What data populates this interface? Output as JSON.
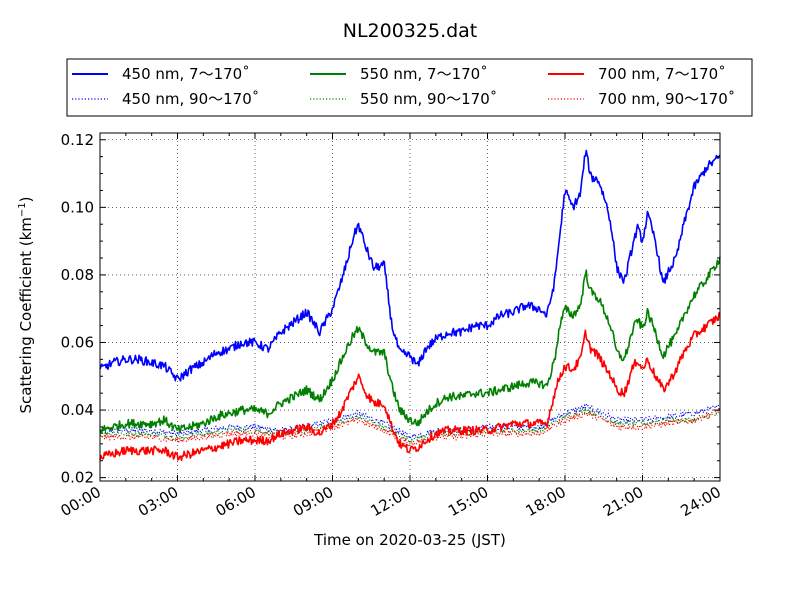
{
  "chart_data": {
    "type": "line",
    "title": "NL200325.dat",
    "xlabel": "Time on 2020-03-25 (JST)",
    "ylabel_main": "Scattering Coefficient (km",
    "ylabel_sup": "−1",
    "ylabel_close": ")",
    "xlim": [
      0,
      24
    ],
    "ylim": [
      0.019,
      0.122
    ],
    "xticks": [
      0,
      3,
      6,
      9,
      12,
      15,
      18,
      21,
      24
    ],
    "xtick_labels": [
      "00:00",
      "03:00",
      "06:00",
      "09:00",
      "12:00",
      "15:00",
      "18:00",
      "21:00",
      "24:00"
    ],
    "yticks": [
      0.02,
      0.04,
      0.06,
      0.08,
      0.1,
      0.12
    ],
    "ytick_labels": [
      "0.02",
      "0.04",
      "0.06",
      "0.08",
      "0.10",
      "0.12"
    ],
    "grid": true,
    "legend_position": "top",
    "series": [
      {
        "name": "450 nm, 7～170˚",
        "color": "#0000ff",
        "style": "solid",
        "x": [
          0,
          0.5,
          1,
          1.5,
          2,
          2.5,
          3,
          3.5,
          4,
          4.5,
          5,
          5.5,
          6,
          6.5,
          7,
          7.5,
          8,
          8.5,
          9,
          9.3,
          9.6,
          9.8,
          10,
          10.3,
          10.6,
          11,
          11.3,
          11.6,
          12,
          12.3,
          12.6,
          13,
          13.5,
          14,
          14.5,
          15,
          15.5,
          16,
          16.5,
          17,
          17.3,
          17.6,
          17.8,
          18,
          18.3,
          18.6,
          18.8,
          19,
          19.3,
          19.6,
          19.8,
          20,
          20.3,
          20.6,
          20.8,
          21,
          21.2,
          21.5,
          21.8,
          22,
          22.3,
          22.6,
          23,
          23.5,
          24
        ],
        "y": [
          0.052,
          0.054,
          0.055,
          0.055,
          0.054,
          0.053,
          0.049,
          0.052,
          0.054,
          0.057,
          0.058,
          0.06,
          0.06,
          0.058,
          0.063,
          0.066,
          0.069,
          0.063,
          0.07,
          0.077,
          0.085,
          0.091,
          0.095,
          0.088,
          0.082,
          0.083,
          0.065,
          0.057,
          0.056,
          0.053,
          0.058,
          0.061,
          0.063,
          0.063,
          0.065,
          0.065,
          0.068,
          0.069,
          0.071,
          0.07,
          0.068,
          0.078,
          0.092,
          0.105,
          0.1,
          0.104,
          0.117,
          0.109,
          0.108,
          0.101,
          0.094,
          0.082,
          0.078,
          0.088,
          0.094,
          0.09,
          0.098,
          0.09,
          0.077,
          0.081,
          0.085,
          0.095,
          0.106,
          0.112,
          0.115
        ]
      },
      {
        "name": "450 nm, 90～170˚",
        "color": "#0000ff",
        "style": "dotted",
        "x": [
          0,
          1,
          2,
          3,
          4,
          5,
          6,
          7,
          8,
          9,
          10,
          11,
          12,
          13,
          14,
          15,
          16,
          17,
          18,
          18.8,
          19.5,
          20,
          21,
          22,
          23,
          24
        ],
        "y": [
          0.034,
          0.034,
          0.034,
          0.033,
          0.034,
          0.035,
          0.035,
          0.034,
          0.035,
          0.037,
          0.039,
          0.036,
          0.032,
          0.034,
          0.034,
          0.035,
          0.035,
          0.035,
          0.039,
          0.041,
          0.039,
          0.037,
          0.037,
          0.038,
          0.039,
          0.041
        ]
      },
      {
        "name": "550 nm, 7～170˚",
        "color": "#008000",
        "style": "solid",
        "x": [
          0,
          0.5,
          1,
          1.5,
          2,
          2.5,
          3,
          3.5,
          4,
          4.5,
          5,
          5.5,
          6,
          6.5,
          7,
          7.5,
          8,
          8.5,
          9,
          9.3,
          9.6,
          9.8,
          10,
          10.3,
          10.6,
          11,
          11.3,
          11.6,
          12,
          12.3,
          12.6,
          13,
          13.5,
          14,
          14.5,
          15,
          15.5,
          16,
          16.5,
          17,
          17.3,
          17.6,
          17.8,
          18,
          18.3,
          18.6,
          18.8,
          19,
          19.3,
          19.6,
          19.8,
          20,
          20.3,
          20.6,
          20.8,
          21,
          21.2,
          21.5,
          21.8,
          22,
          22.3,
          22.6,
          23,
          23.5,
          24
        ],
        "y": [
          0.034,
          0.035,
          0.036,
          0.036,
          0.036,
          0.037,
          0.034,
          0.035,
          0.036,
          0.038,
          0.039,
          0.04,
          0.04,
          0.039,
          0.042,
          0.044,
          0.046,
          0.043,
          0.049,
          0.054,
          0.059,
          0.062,
          0.064,
          0.06,
          0.057,
          0.057,
          0.047,
          0.04,
          0.037,
          0.036,
          0.039,
          0.042,
          0.044,
          0.044,
          0.045,
          0.045,
          0.046,
          0.047,
          0.048,
          0.048,
          0.047,
          0.055,
          0.065,
          0.07,
          0.068,
          0.071,
          0.081,
          0.075,
          0.073,
          0.068,
          0.064,
          0.057,
          0.055,
          0.063,
          0.067,
          0.064,
          0.069,
          0.063,
          0.056,
          0.059,
          0.062,
          0.068,
          0.074,
          0.079,
          0.085
        ]
      },
      {
        "name": "550 nm, 90～170˚",
        "color": "#008000",
        "style": "dotted",
        "x": [
          0,
          1,
          2,
          3,
          4,
          5,
          6,
          7,
          8,
          9,
          10,
          11,
          12,
          13,
          14,
          15,
          16,
          17,
          18,
          18.8,
          19.5,
          20,
          21,
          22,
          23,
          24
        ],
        "y": [
          0.033,
          0.033,
          0.033,
          0.032,
          0.033,
          0.034,
          0.034,
          0.033,
          0.034,
          0.036,
          0.038,
          0.035,
          0.031,
          0.033,
          0.033,
          0.034,
          0.034,
          0.034,
          0.038,
          0.04,
          0.038,
          0.036,
          0.036,
          0.037,
          0.037,
          0.039
        ]
      },
      {
        "name": "700 nm, 7～170˚",
        "color": "#ff0000",
        "style": "solid",
        "x": [
          0,
          0.5,
          1,
          1.5,
          2,
          2.5,
          3,
          3.5,
          4,
          4.5,
          5,
          5.5,
          6,
          6.5,
          7,
          7.5,
          8,
          8.5,
          9,
          9.3,
          9.6,
          9.8,
          10,
          10.3,
          10.6,
          11,
          11.3,
          11.6,
          12,
          12.3,
          12.6,
          13,
          13.5,
          14,
          14.5,
          15,
          15.5,
          16,
          16.5,
          17,
          17.3,
          17.6,
          17.8,
          18,
          18.3,
          18.6,
          18.8,
          19,
          19.3,
          19.6,
          19.8,
          20,
          20.3,
          20.6,
          20.8,
          21,
          21.2,
          21.5,
          21.8,
          22,
          22.3,
          22.6,
          23,
          23.5,
          24
        ],
        "y": [
          0.026,
          0.027,
          0.028,
          0.028,
          0.028,
          0.028,
          0.026,
          0.027,
          0.028,
          0.029,
          0.03,
          0.031,
          0.031,
          0.031,
          0.033,
          0.034,
          0.035,
          0.033,
          0.036,
          0.039,
          0.044,
          0.047,
          0.05,
          0.045,
          0.042,
          0.042,
          0.035,
          0.03,
          0.028,
          0.029,
          0.031,
          0.033,
          0.034,
          0.034,
          0.034,
          0.034,
          0.035,
          0.036,
          0.036,
          0.036,
          0.036,
          0.045,
          0.05,
          0.053,
          0.052,
          0.055,
          0.063,
          0.058,
          0.056,
          0.052,
          0.05,
          0.046,
          0.045,
          0.052,
          0.055,
          0.052,
          0.055,
          0.05,
          0.046,
          0.048,
          0.052,
          0.057,
          0.062,
          0.065,
          0.068
        ]
      },
      {
        "name": "700 nm, 90～170˚",
        "color": "#ff0000",
        "style": "dotted",
        "x": [
          0,
          1,
          2,
          3,
          4,
          5,
          6,
          7,
          8,
          9,
          10,
          11,
          12,
          13,
          14,
          15,
          16,
          17,
          18,
          18.8,
          19.5,
          20,
          21,
          22,
          23,
          24
        ],
        "y": [
          0.032,
          0.032,
          0.032,
          0.031,
          0.032,
          0.033,
          0.033,
          0.032,
          0.033,
          0.035,
          0.037,
          0.034,
          0.03,
          0.032,
          0.032,
          0.033,
          0.033,
          0.033,
          0.037,
          0.039,
          0.037,
          0.035,
          0.035,
          0.036,
          0.037,
          0.04
        ]
      }
    ]
  }
}
